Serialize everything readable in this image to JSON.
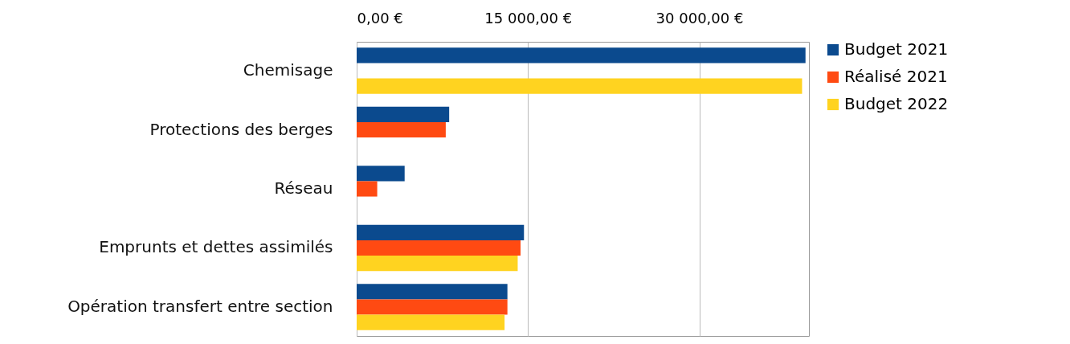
{
  "chart_data": {
    "type": "bar",
    "orientation": "horizontal",
    "categories": [
      "Chemisage",
      "Protections des berges",
      "Réseau",
      "Emprunts et dettes assimilés",
      "Opération transfert entre section"
    ],
    "series": [
      {
        "name": "Budget 2021",
        "color": "#0b4a8e",
        "values": [
          39300,
          8100,
          4200,
          14650,
          13200
        ]
      },
      {
        "name": "Réalisé 2021",
        "color": "#ff4a12",
        "values": [
          null,
          7800,
          1800,
          14350,
          13200
        ]
      },
      {
        "name": "Budget 2022",
        "color": "#ffd320",
        "values": [
          39000,
          null,
          null,
          14100,
          12950
        ]
      }
    ],
    "xlim": [
      0,
      39600
    ],
    "xticks": [
      {
        "value": 0,
        "label": "0,00 €"
      },
      {
        "value": 15000,
        "label": "15 000,00 €"
      },
      {
        "value": 30000,
        "label": "30 000,00 €"
      }
    ],
    "grid": "x",
    "legend": "right"
  }
}
